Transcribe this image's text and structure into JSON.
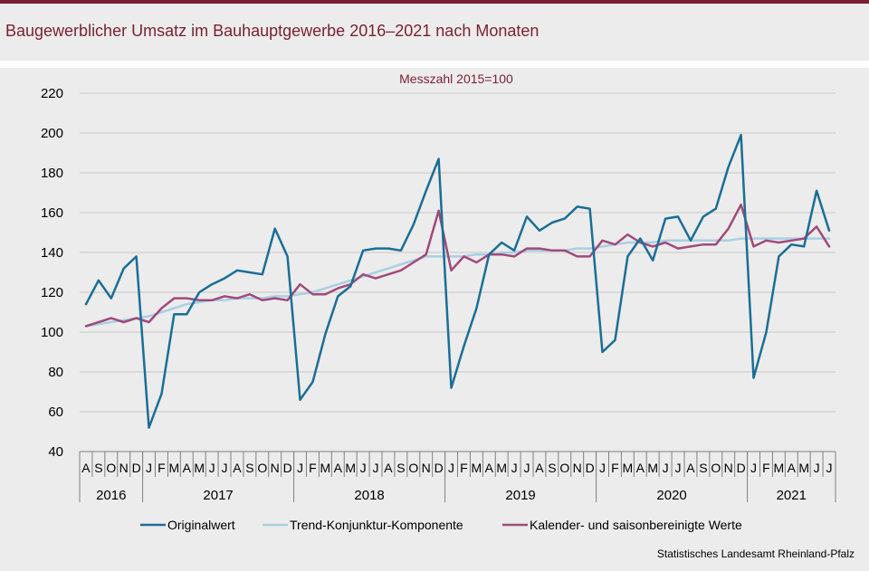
{
  "title": "Baugewerblicher Umsatz im Bauhauptgewerbe 2016–2021 nach Monaten",
  "source": "Statistisches Landesamt  Rheinland-Pfalz",
  "chart_data": {
    "type": "line",
    "subtitle": "Messzahl  2015=100",
    "ylim": [
      40,
      220
    ],
    "yticks": [
      40,
      60,
      80,
      100,
      120,
      140,
      160,
      180,
      200,
      220
    ],
    "grid": true,
    "legend_position": "bottom",
    "month_labels": [
      "A",
      "S",
      "O",
      "N",
      "D",
      "J",
      "F",
      "M",
      "A",
      "M",
      "J",
      "J",
      "A",
      "S",
      "O",
      "N",
      "D",
      "J",
      "F",
      "M",
      "A",
      "M",
      "J",
      "J",
      "A",
      "S",
      "O",
      "N",
      "D",
      "J",
      "F",
      "M",
      "A",
      "M",
      "J",
      "J",
      "A",
      "S",
      "O",
      "N",
      "D",
      "J",
      "F",
      "M",
      "A",
      "M",
      "J",
      "J",
      "A",
      "S",
      "O",
      "N",
      "D",
      "J",
      "F",
      "M",
      "A",
      "M",
      "J",
      "J"
    ],
    "years": [
      {
        "label": "2016",
        "months": 5
      },
      {
        "label": "2017",
        "months": 12
      },
      {
        "label": "2018",
        "months": 12
      },
      {
        "label": "2019",
        "months": 12
      },
      {
        "label": "2020",
        "months": 12
      },
      {
        "label": "2021",
        "months": 7
      }
    ],
    "series": [
      {
        "name": "Originalwert",
        "color": "#1a6e96",
        "values": [
          114,
          126,
          117,
          132,
          138,
          52,
          69,
          109,
          109,
          120,
          124,
          127,
          131,
          130,
          129,
          152,
          138,
          66,
          75,
          99,
          118,
          123,
          141,
          142,
          142,
          141,
          154,
          171,
          187,
          72,
          93,
          112,
          139,
          145,
          141,
          158,
          151,
          155,
          157,
          163,
          162,
          90,
          96,
          138,
          147,
          136,
          157,
          158,
          146,
          158,
          162,
          183,
          199,
          77,
          100,
          138,
          144,
          143,
          171,
          151
        ]
      },
      {
        "name": "Trend-Konjunktur-Komponente",
        "color": "#a9cfe3",
        "values": [
          103,
          104,
          105,
          106,
          107,
          108,
          110,
          112,
          114,
          115,
          116,
          116,
          117,
          117,
          117,
          118,
          118,
          119,
          120,
          122,
          124,
          126,
          128,
          130,
          132,
          134,
          136,
          138,
          138,
          138,
          138,
          139,
          139,
          140,
          140,
          141,
          141,
          141,
          141,
          142,
          142,
          143,
          144,
          145,
          145,
          145,
          146,
          146,
          146,
          146,
          146,
          146,
          147,
          147,
          147,
          147,
          147,
          147,
          147,
          147
        ]
      },
      {
        "name": "Kalender- und saisonbereinigte Werte",
        "color": "#a04a7a",
        "values": [
          103,
          105,
          107,
          105,
          107,
          105,
          112,
          117,
          117,
          116,
          116,
          118,
          117,
          119,
          116,
          117,
          116,
          124,
          119,
          119,
          122,
          124,
          129,
          127,
          129,
          131,
          135,
          139,
          161,
          131,
          138,
          135,
          139,
          139,
          138,
          142,
          142,
          141,
          141,
          138,
          138,
          146,
          144,
          149,
          145,
          143,
          145,
          142,
          143,
          144,
          144,
          152,
          164,
          143,
          146,
          145,
          146,
          147,
          153,
          143
        ]
      }
    ]
  }
}
